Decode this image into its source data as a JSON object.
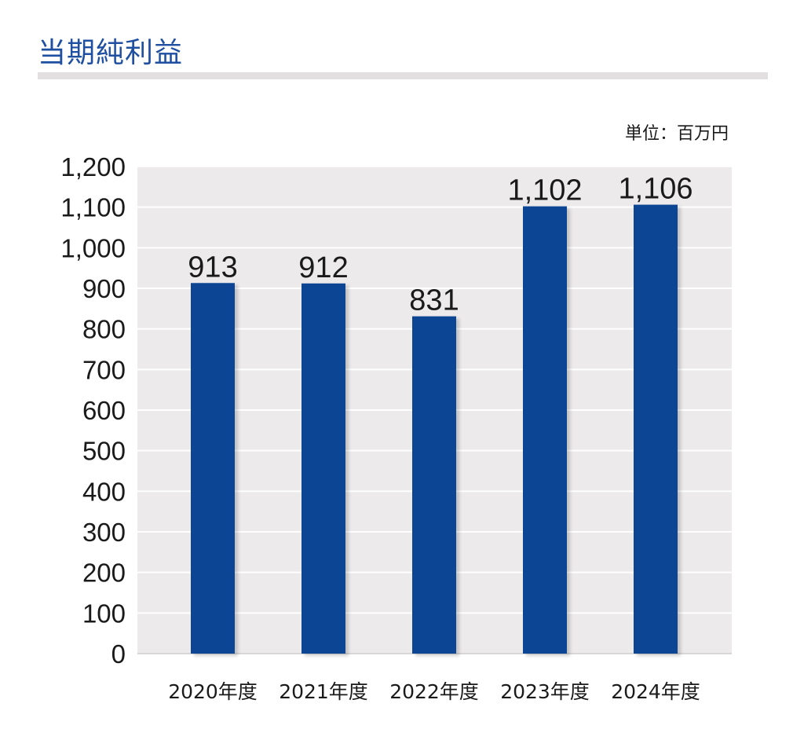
{
  "title": "当期純利益",
  "unit_label": "単位：百万円",
  "colors": {
    "title": "#1f4fa0",
    "bar": "#0a4495",
    "plot_background": "#eceaeb",
    "grid": "#ffffff",
    "rule": "#e1dfe0"
  },
  "chart_data": {
    "type": "bar",
    "categories": [
      "2020年度",
      "2021年度",
      "2022年度",
      "2023年度",
      "2024年度"
    ],
    "values": [
      913,
      912,
      831,
      1102,
      1106
    ],
    "value_labels": [
      "913",
      "912",
      "831",
      "1,102",
      "1,106"
    ],
    "ylim": [
      0,
      1200
    ],
    "yticks": [
      0,
      100,
      200,
      300,
      400,
      500,
      600,
      700,
      800,
      900,
      1000,
      1100,
      1200
    ],
    "ytick_labels": [
      "0",
      "100",
      "200",
      "300",
      "400",
      "500",
      "600",
      "700",
      "800",
      "900",
      "1,000",
      "1,100",
      "1,200"
    ],
    "grid": true,
    "legend": "none"
  }
}
